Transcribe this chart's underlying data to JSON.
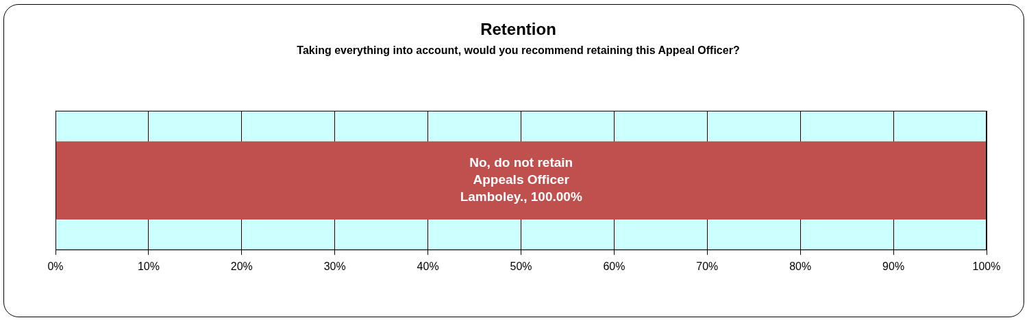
{
  "chart_data": {
    "type": "bar",
    "orientation": "horizontal",
    "title": "Retention",
    "subtitle": "Taking everything into account, would you recommend retaining this Appeal Officer?",
    "categories": [
      null
    ],
    "series": [
      {
        "color": "#c0504d",
        "values": [
          100
        ]
      }
    ],
    "value_labels": [
      "No, do not retain Appeals Officer Lamboley., 100.00%"
    ],
    "xlim": [
      0,
      100
    ],
    "xticks": [
      {
        "value": 0,
        "label": "0%"
      },
      {
        "value": 10,
        "label": "10%"
      },
      {
        "value": 20,
        "label": "20%"
      },
      {
        "value": 30,
        "label": "30%"
      },
      {
        "value": 40,
        "label": "40%"
      },
      {
        "value": 50,
        "label": "50%"
      },
      {
        "value": 60,
        "label": "60%"
      },
      {
        "value": 70,
        "label": "70%"
      },
      {
        "value": 80,
        "label": "80%"
      },
      {
        "value": 90,
        "label": "90%"
      },
      {
        "value": 100,
        "label": "100%"
      }
    ],
    "bands": [
      {
        "axis": "x",
        "from": 0,
        "to": 100,
        "color": "#ccffff"
      }
    ],
    "grid": "x",
    "legend": false,
    "tick_labels": "x"
  }
}
